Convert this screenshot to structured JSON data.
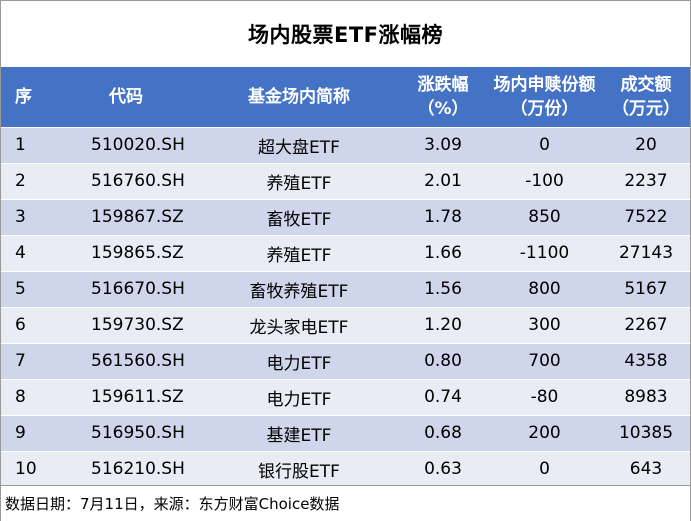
{
  "title": "场内股票ETF涨幅榜",
  "columns": {
    "rank": "序",
    "code": "代码",
    "name": "基金场内简称",
    "change_line1": "涨跌幅",
    "change_line2": "（%）",
    "share_line1": "场内申赎份额",
    "share_line2": "（万份）",
    "volume_line1": "成交额",
    "volume_line2": "（万元）"
  },
  "rows": [
    {
      "rank": "1",
      "code": "510020.SH",
      "name": "超大盘ETF",
      "change": "3.09",
      "share": "0",
      "volume": "20"
    },
    {
      "rank": "2",
      "code": "516760.SH",
      "name": "养殖ETF",
      "change": "2.01",
      "share": "-100",
      "volume": "2237"
    },
    {
      "rank": "3",
      "code": "159867.SZ",
      "name": "畜牧ETF",
      "change": "1.78",
      "share": "850",
      "volume": "7522"
    },
    {
      "rank": "4",
      "code": "159865.SZ",
      "name": "养殖ETF",
      "change": "1.66",
      "share": "-1100",
      "volume": "27143"
    },
    {
      "rank": "5",
      "code": "516670.SH",
      "name": "畜牧养殖ETF",
      "change": "1.56",
      "share": "800",
      "volume": "5167"
    },
    {
      "rank": "6",
      "code": "159730.SZ",
      "name": "龙头家电ETF",
      "change": "1.20",
      "share": "300",
      "volume": "2267"
    },
    {
      "rank": "7",
      "code": "561560.SH",
      "name": "电力ETF",
      "change": "0.80",
      "share": "700",
      "volume": "4358"
    },
    {
      "rank": "8",
      "code": "159611.SZ",
      "name": "电力ETF",
      "change": "0.74",
      "share": "-80",
      "volume": "8983"
    },
    {
      "rank": "9",
      "code": "516950.SH",
      "name": "基建ETF",
      "change": "0.68",
      "share": "200",
      "volume": "10385"
    },
    {
      "rank": "10",
      "code": "516210.SH",
      "name": "银行股ETF",
      "change": "0.63",
      "share": "0",
      "volume": "643"
    }
  ],
  "footer": "数据日期：7月11日，来源：东方财富Choice数据",
  "colors": {
    "header_bg": "#4472c4",
    "row_odd": "#cfd5ea",
    "row_even": "#e9ebf5"
  }
}
